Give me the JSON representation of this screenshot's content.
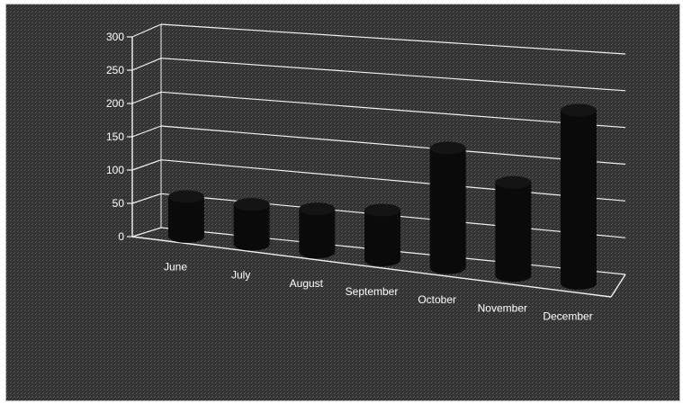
{
  "chart_data": {
    "type": "bar",
    "style": "3d-cylinder",
    "categories": [
      "June",
      "July",
      "August",
      "September",
      "October",
      "November",
      "December"
    ],
    "values": [
      60,
      60,
      65,
      75,
      180,
      140,
      260
    ],
    "ylim": [
      0,
      300
    ],
    "yticks": [
      "0",
      "50",
      "100",
      "150",
      "200",
      "250",
      "300"
    ],
    "title": "",
    "xlabel": "",
    "ylabel": "",
    "grid": true,
    "legend": "none"
  },
  "colors": {
    "background": "#2e2e2e",
    "bars": "#0a0a0a",
    "gridlines": "#f2f2f2",
    "text": "#ffffff"
  }
}
